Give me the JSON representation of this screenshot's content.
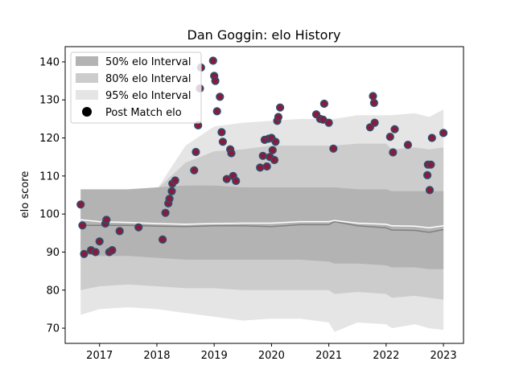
{
  "chart_data": {
    "type": "scatter",
    "title": "Dan Goggin: elo History",
    "xlabel": "",
    "ylabel": "elo score",
    "xlim": [
      2016.4,
      2023.35
    ],
    "ylim": [
      66,
      144
    ],
    "x_ticks": [
      2017,
      2018,
      2019,
      2020,
      2021,
      2022,
      2023
    ],
    "y_ticks": [
      70,
      80,
      90,
      100,
      110,
      120,
      130,
      140
    ],
    "legend": {
      "placement": "top-left",
      "entries": [
        "50% elo Interval",
        "80% elo Interval",
        "95% elo Interval",
        "Post Match elo"
      ]
    },
    "colors": {
      "band50": "#b3b3b3",
      "band80": "#cccccc",
      "band95": "#e5e5e5",
      "marker_face": "#8b1a3a",
      "marker_edge": "#2e4f6e",
      "median_line": "#808080",
      "mean_line": "#ffffff"
    },
    "bands": {
      "x": [
        2016.67,
        2017.0,
        2017.5,
        2018.0,
        2018.5,
        2019.0,
        2019.5,
        2020.0,
        2020.5,
        2021.0,
        2021.1,
        2021.5,
        2022.0,
        2022.1,
        2022.5,
        2022.75,
        2023.0
      ],
      "p95_low": [
        73.5,
        75.0,
        75.5,
        75.0,
        74.0,
        73.0,
        72.0,
        72.5,
        72.5,
        71.5,
        69.0,
        71.5,
        71.0,
        70.0,
        71.0,
        70.0,
        69.5
      ],
      "p95_high": [
        103.0,
        103.5,
        105.0,
        106.5,
        118.0,
        123.0,
        124.0,
        124.5,
        125.0,
        125.0,
        125.0,
        126.0,
        126.0,
        126.0,
        126.5,
        125.5,
        127.5
      ],
      "p80_low": [
        80.0,
        81.0,
        81.5,
        81.0,
        80.5,
        80.5,
        80.0,
        80.0,
        80.0,
        80.0,
        79.0,
        79.5,
        79.0,
        78.0,
        78.5,
        78.0,
        77.5
      ],
      "p80_high": [
        102.0,
        103.0,
        105.0,
        106.5,
        113.5,
        116.5,
        117.0,
        118.0,
        118.0,
        118.0,
        118.0,
        118.5,
        118.5,
        117.0,
        117.5,
        117.0,
        117.5
      ],
      "p50_low": [
        89.5,
        89.0,
        89.0,
        88.5,
        88.0,
        88.0,
        88.0,
        88.0,
        88.0,
        87.5,
        87.0,
        87.0,
        86.5,
        86.0,
        86.0,
        85.5,
        85.5
      ],
      "p50_high": [
        106.5,
        106.5,
        106.5,
        107.0,
        107.5,
        107.5,
        107.0,
        107.0,
        107.0,
        107.0,
        107.0,
        106.5,
        106.5,
        106.0,
        106.0,
        106.0,
        106.0
      ],
      "median": [
        97.0,
        97.0,
        97.0,
        96.8,
        96.7,
        96.9,
        96.9,
        96.7,
        97.2,
        97.2,
        98.0,
        96.9,
        96.4,
        95.8,
        95.7,
        95.2,
        95.9
      ],
      "mean": [
        98.5,
        98.0,
        97.8,
        97.5,
        97.3,
        97.5,
        97.6,
        97.6,
        98.0,
        98.0,
        98.3,
        97.6,
        97.3,
        96.9,
        96.8,
        96.4,
        96.9
      ]
    },
    "points": [
      [
        2016.67,
        102.5
      ],
      [
        2016.7,
        97.0
      ],
      [
        2016.73,
        89.5
      ],
      [
        2016.85,
        90.5
      ],
      [
        2016.93,
        90.0
      ],
      [
        2017.0,
        92.8
      ],
      [
        2017.1,
        97.5
      ],
      [
        2017.12,
        98.5
      ],
      [
        2017.17,
        90.0
      ],
      [
        2017.22,
        90.5
      ],
      [
        2017.35,
        95.5
      ],
      [
        2017.68,
        96.5
      ],
      [
        2018.1,
        93.3
      ],
      [
        2018.15,
        100.3
      ],
      [
        2018.2,
        102.8
      ],
      [
        2018.22,
        104.0
      ],
      [
        2018.26,
        106.0
      ],
      [
        2018.27,
        108.0
      ],
      [
        2018.32,
        108.8
      ],
      [
        2018.65,
        111.5
      ],
      [
        2018.68,
        116.3
      ],
      [
        2018.72,
        123.3
      ],
      [
        2018.75,
        133.0
      ],
      [
        2018.77,
        138.5
      ],
      [
        2018.98,
        140.3
      ],
      [
        2019.0,
        136.3
      ],
      [
        2019.02,
        135.0
      ],
      [
        2019.05,
        127.0
      ],
      [
        2019.1,
        130.8
      ],
      [
        2019.13,
        121.5
      ],
      [
        2019.15,
        119.0
      ],
      [
        2019.22,
        109.2
      ],
      [
        2019.28,
        117.0
      ],
      [
        2019.3,
        116.0
      ],
      [
        2019.33,
        110.0
      ],
      [
        2019.38,
        108.7
      ],
      [
        2019.8,
        112.2
      ],
      [
        2019.85,
        115.3
      ],
      [
        2019.88,
        119.5
      ],
      [
        2019.92,
        112.5
      ],
      [
        2019.95,
        119.8
      ],
      [
        2019.97,
        115.0
      ],
      [
        2020.0,
        120.0
      ],
      [
        2020.02,
        116.8
      ],
      [
        2020.05,
        114.2
      ],
      [
        2020.07,
        119.0
      ],
      [
        2020.1,
        124.5
      ],
      [
        2020.12,
        125.5
      ],
      [
        2020.15,
        128.0
      ],
      [
        2020.78,
        126.2
      ],
      [
        2020.85,
        125.0
      ],
      [
        2020.9,
        124.8
      ],
      [
        2020.92,
        129.0
      ],
      [
        2021.0,
        124.0
      ],
      [
        2021.08,
        117.2
      ],
      [
        2021.72,
        122.8
      ],
      [
        2021.77,
        131.0
      ],
      [
        2021.79,
        129.2
      ],
      [
        2021.8,
        124.0
      ],
      [
        2022.07,
        120.3
      ],
      [
        2022.12,
        116.2
      ],
      [
        2022.15,
        122.3
      ],
      [
        2022.38,
        118.2
      ],
      [
        2022.72,
        110.2
      ],
      [
        2022.73,
        113.0
      ],
      [
        2022.76,
        106.3
      ],
      [
        2022.78,
        113.0
      ],
      [
        2022.8,
        120.0
      ],
      [
        2023.0,
        121.3
      ]
    ]
  }
}
